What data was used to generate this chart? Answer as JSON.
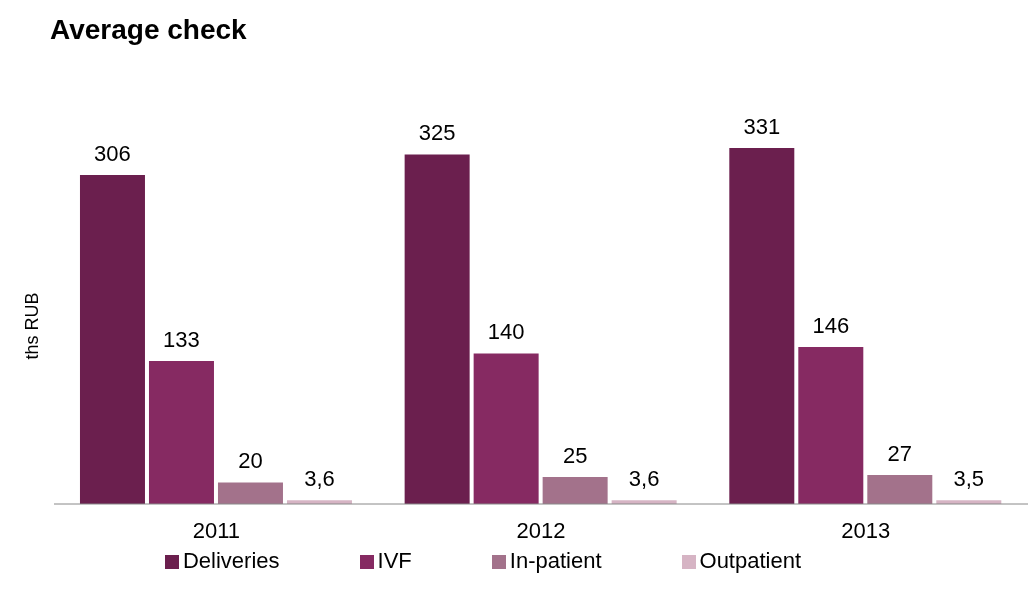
{
  "chart_data": {
    "type": "bar",
    "title": "Average check",
    "ylabel": "ths RUB",
    "categories": [
      "2011",
      "2012",
      "2013"
    ],
    "series": [
      {
        "name": "Deliveries",
        "color": "#6b1f4e",
        "values": [
          306,
          325,
          331
        ],
        "value_labels": [
          "306",
          "325",
          "331"
        ]
      },
      {
        "name": "IVF",
        "color": "#862a62",
        "values": [
          133,
          140,
          146
        ],
        "value_labels": [
          "133",
          "140",
          "146"
        ]
      },
      {
        "name": "In-patient",
        "color": "#a3728b",
        "values": [
          20,
          25,
          27
        ],
        "value_labels": [
          "20",
          "25",
          "27"
        ]
      },
      {
        "name": "Outpatient",
        "color": "#d6b4c4",
        "values": [
          3.6,
          3.6,
          3.5
        ],
        "value_labels": [
          "3,6",
          "3,6",
          "3,5"
        ]
      }
    ],
    "legend": "bottom",
    "grid": false
  }
}
